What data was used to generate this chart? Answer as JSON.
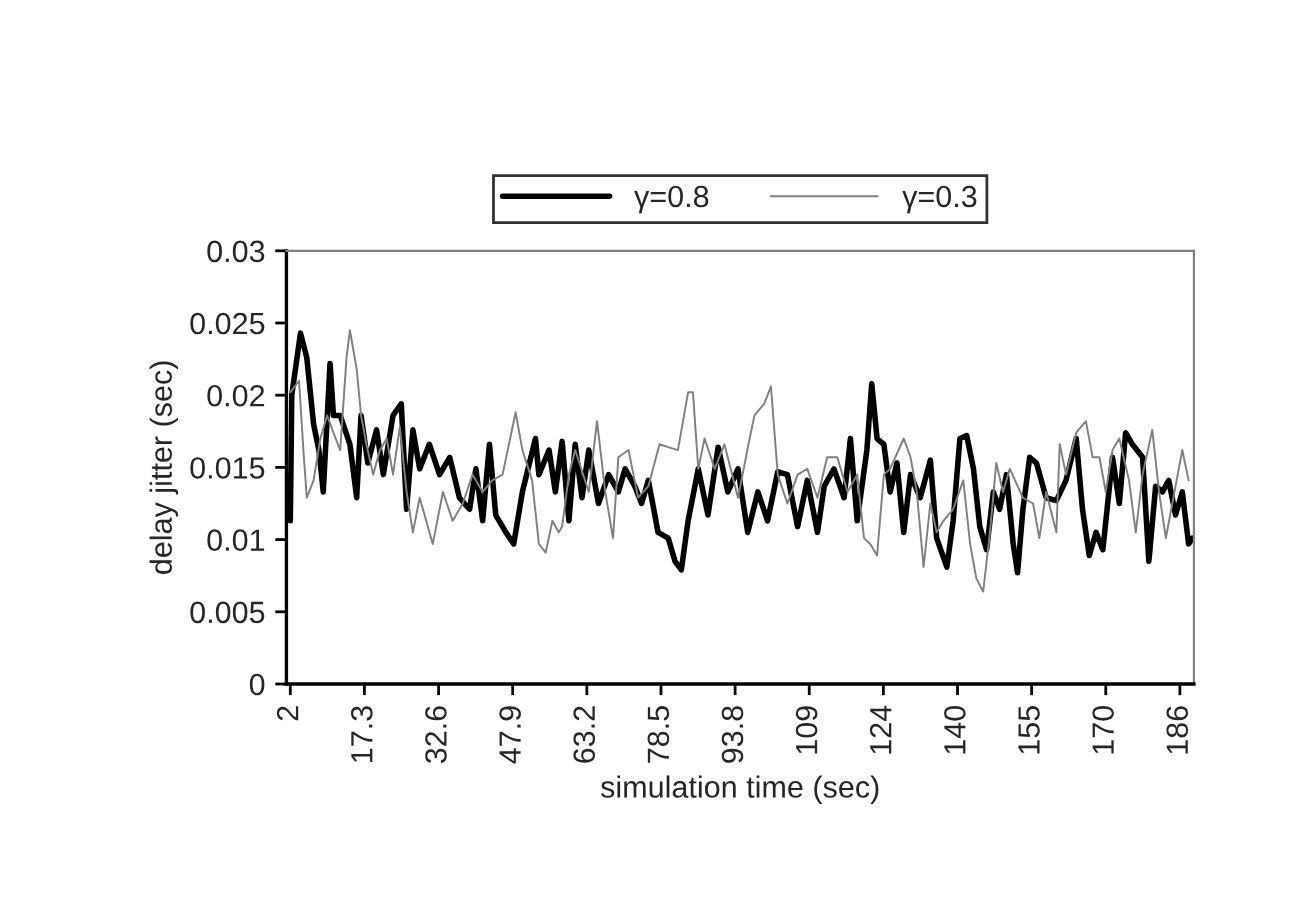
{
  "chart_data": {
    "type": "line",
    "xlabel": "simulation time (sec)",
    "ylabel": "delay jitter (sec)",
    "xlim": [
      1.2,
      188.5
    ],
    "ylim": [
      0,
      0.03
    ],
    "xticks": [
      2,
      17.3,
      32.6,
      47.9,
      63.2,
      78.5,
      93.8,
      {
        "value": 109.1,
        "label": "109"
      },
      {
        "value": 124.4,
        "label": "124"
      },
      {
        "value": 139.7,
        "label": "140"
      },
      {
        "value": 155,
        "label": "155"
      },
      {
        "value": 170.3,
        "label": "170"
      },
      {
        "value": 185.6,
        "label": "186"
      }
    ],
    "yticks": [
      0,
      0.005,
      0.01,
      0.015,
      0.02,
      0.025,
      0.03
    ],
    "grid": false,
    "legend": "top",
    "marker": "none",
    "line_style": "solid",
    "series": [
      {
        "name": "γ=0.8",
        "color": "#000000",
        "x": [
          2,
          2.3,
          4.1,
          5.4,
          6.8,
          7.9,
          8.8,
          10.2,
          10.9,
          12.3,
          14.3,
          15.7,
          16.6,
          18,
          19.8,
          21.2,
          23.2,
          24.9,
          26,
          27.3,
          28.7,
          30.7,
          32.8,
          34.9,
          36.9,
          39,
          40.3,
          41.7,
          43.1,
          44.4,
          46.5,
          48.1,
          49.9,
          52.6,
          53.3,
          55.4,
          56.7,
          58.1,
          59.5,
          60.8,
          62.2,
          63.6,
          65.6,
          67.7,
          69.7,
          71.1,
          73.1,
          74.5,
          75.9,
          77.9,
          80,
          81.4,
          82.7,
          84.1,
          86.2,
          88.2,
          90.3,
          92.3,
          94.4,
          96.4,
          98.5,
          100.5,
          102.6,
          104.6,
          106.7,
          108.7,
          110.8,
          112.2,
          114.2,
          116.3,
          117.6,
          119,
          121,
          122,
          123.1,
          124.5,
          125.8,
          127.2,
          128.6,
          130,
          132,
          134.1,
          135.4,
          137.5,
          138.8,
          140.2,
          141.6,
          143,
          144.3,
          145.7,
          147.1,
          148.4,
          149.8,
          151.2,
          152.1,
          153.2,
          154.6,
          156,
          158,
          160.1,
          162.1,
          164.2,
          165.5,
          166.9,
          168.3,
          169.7,
          171.7,
          173.1,
          174.4,
          175.8,
          177.9,
          179.2,
          180.6,
          182,
          183.3,
          184.7,
          186.1,
          187.4,
          188.2
        ],
        "values": [
          0.0113,
          0.02,
          0.0243,
          0.0226,
          0.018,
          0.0162,
          0.0133,
          0.0222,
          0.0186,
          0.0186,
          0.0166,
          0.0129,
          0.0186,
          0.0153,
          0.0176,
          0.0145,
          0.0186,
          0.0194,
          0.0121,
          0.0176,
          0.0149,
          0.0166,
          0.0145,
          0.0157,
          0.0129,
          0.0121,
          0.0149,
          0.0113,
          0.0166,
          0.0117,
          0.0105,
          0.0097,
          0.0133,
          0.017,
          0.0145,
          0.0162,
          0.0133,
          0.0168,
          0.0113,
          0.0166,
          0.0129,
          0.0162,
          0.0125,
          0.0145,
          0.0133,
          0.0149,
          0.0137,
          0.0125,
          0.0141,
          0.0105,
          0.0101,
          0.0085,
          0.0079,
          0.0113,
          0.0149,
          0.0117,
          0.0164,
          0.0133,
          0.0149,
          0.0105,
          0.0133,
          0.0113,
          0.0147,
          0.0145,
          0.0109,
          0.0141,
          0.0105,
          0.0137,
          0.0149,
          0.0129,
          0.017,
          0.0113,
          0.0162,
          0.0208,
          0.017,
          0.0166,
          0.0133,
          0.0153,
          0.0105,
          0.0145,
          0.0129,
          0.0155,
          0.0101,
          0.0081,
          0.0113,
          0.017,
          0.0172,
          0.0149,
          0.0109,
          0.0093,
          0.0133,
          0.0121,
          0.0145,
          0.0097,
          0.0077,
          0.0121,
          0.0157,
          0.0153,
          0.0129,
          0.0127,
          0.0141,
          0.017,
          0.0121,
          0.0089,
          0.0105,
          0.0093,
          0.0157,
          0.0125,
          0.0174,
          0.0166,
          0.0157,
          0.0085,
          0.0137,
          0.0133,
          0.0141,
          0.0117,
          0.0133,
          0.0097,
          0.0101
        ]
      },
      {
        "name": "γ=0.3",
        "color": "#808080",
        "x": [
          2,
          3.8,
          4.7,
          5.4,
          6.8,
          8.2,
          9.6,
          10.9,
          12.3,
          13.6,
          14.3,
          15.7,
          16.6,
          17.7,
          19.1,
          20.5,
          21.9,
          23.2,
          24.6,
          26,
          27.3,
          28.7,
          31.4,
          33.5,
          35.5,
          37.6,
          39.6,
          41.7,
          43.7,
          45.8,
          48.5,
          49.9,
          51.9,
          53.3,
          54.7,
          56.1,
          57.4,
          58.1,
          59.5,
          60.8,
          63.6,
          65.3,
          67,
          68.6,
          69.7,
          71.8,
          73.8,
          75.9,
          78.2,
          80,
          82,
          84.1,
          85.1,
          86.2,
          87.5,
          89.6,
          91.6,
          94.4,
          96.8,
          97.8,
          99.8,
          101.2,
          102.6,
          104.6,
          106.7,
          108.7,
          110.8,
          112.8,
          114.9,
          117,
          119,
          120.4,
          121.7,
          123.1,
          124.5,
          125.8,
          128.6,
          130,
          131.3,
          132.7,
          134.1,
          135.4,
          136.8,
          138.8,
          140.9,
          142.3,
          143.6,
          145,
          146.4,
          147.7,
          149.1,
          150.5,
          153.2,
          155.3,
          156.6,
          158,
          160.1,
          160.8,
          162.1,
          164.2,
          166.2,
          167.6,
          169,
          170.3,
          171.7,
          173.1,
          175.1,
          176.5,
          177.9,
          179.9,
          181.3,
          182.7,
          184.7,
          186.1,
          187.4
        ],
        "values": [
          0.0202,
          0.021,
          0.0162,
          0.0129,
          0.0141,
          0.017,
          0.0186,
          0.0174,
          0.0162,
          0.0226,
          0.0245,
          0.0218,
          0.0186,
          0.0166,
          0.0145,
          0.0162,
          0.017,
          0.0145,
          0.0178,
          0.0133,
          0.0105,
          0.0129,
          0.0097,
          0.0133,
          0.0113,
          0.0125,
          0.0145,
          0.0133,
          0.0141,
          0.0145,
          0.0188,
          0.0162,
          0.0141,
          0.0097,
          0.0091,
          0.0113,
          0.0105,
          0.0109,
          0.0145,
          0.0162,
          0.0133,
          0.0182,
          0.0133,
          0.0101,
          0.0157,
          0.0162,
          0.0129,
          0.0137,
          0.0166,
          0.0164,
          0.0162,
          0.0202,
          0.0202,
          0.0149,
          0.017,
          0.0149,
          0.0166,
          0.0129,
          0.017,
          0.0186,
          0.0194,
          0.0206,
          0.0145,
          0.0125,
          0.0145,
          0.0149,
          0.0129,
          0.0157,
          0.0157,
          0.0133,
          0.0145,
          0.0101,
          0.0097,
          0.0089,
          0.0145,
          0.0149,
          0.017,
          0.0157,
          0.0133,
          0.0081,
          0.0125,
          0.0105,
          0.0113,
          0.0121,
          0.0141,
          0.0097,
          0.0073,
          0.0064,
          0.0105,
          0.0153,
          0.0133,
          0.0149,
          0.0129,
          0.0125,
          0.0101,
          0.0133,
          0.0105,
          0.0166,
          0.0145,
          0.0174,
          0.0182,
          0.0157,
          0.0157,
          0.0133,
          0.0162,
          0.017,
          0.0141,
          0.0105,
          0.0145,
          0.0176,
          0.0133,
          0.0101,
          0.0137,
          0.0162,
          0.0141
        ]
      }
    ]
  }
}
